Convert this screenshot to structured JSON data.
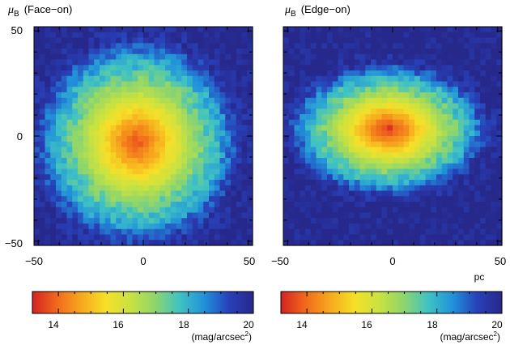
{
  "chart_data": [
    {
      "type": "heatmap",
      "title_symbol": "μ",
      "title_sub": "B",
      "title_rest": "(Face−on)",
      "view": "face-on",
      "xlim": [
        -52,
        52
      ],
      "ylim": [
        -52,
        52
      ],
      "xticks": [
        -50,
        0,
        50
      ],
      "yticks": [
        -50,
        0,
        50
      ],
      "xtick_labels": [
        "−50",
        "0",
        "50"
      ],
      "ytick_labels": [
        "−50",
        "0",
        "50"
      ],
      "xlabel": "",
      "bins": 40,
      "center": [
        -3,
        -3
      ],
      "radial_profile": {
        "r": [
          0,
          10,
          20,
          30,
          40,
          45,
          50,
          60
        ],
        "mu": [
          13.6,
          14.8,
          16.0,
          17.2,
          18.2,
          19.0,
          19.6,
          20.0
        ]
      },
      "axis_ratio": 1.0
    },
    {
      "type": "heatmap",
      "title_symbol": "μ",
      "title_sub": "B",
      "title_rest": "(Edge−on)",
      "view": "edge-on",
      "xlim": [
        -52,
        52
      ],
      "ylim": [
        -52,
        52
      ],
      "xticks": [
        -50,
        0,
        50
      ],
      "yticks": [
        -50,
        0,
        50
      ],
      "xtick_labels": [
        "−50",
        "0",
        "50"
      ],
      "ytick_labels": [
        "",
        "0",
        "50"
      ],
      "xlabel": "pc",
      "bins": 40,
      "center": [
        -2,
        3
      ],
      "radial_profile": {
        "r": [
          0,
          10,
          20,
          30,
          40,
          45,
          50,
          60
        ],
        "mu": [
          13.3,
          14.6,
          15.8,
          17.0,
          18.0,
          18.8,
          19.5,
          20.0
        ]
      },
      "axis_ratio": 0.42
    }
  ],
  "colorbar": {
    "min": 13.2,
    "max": 20,
    "ticks": [
      14,
      16,
      18,
      20
    ],
    "tick_labels": [
      "14",
      "16",
      "18",
      "20"
    ],
    "unit_prefix": "(mag/arcsec",
    "unit_sup": "2",
    "unit_suffix": ")",
    "colormap": [
      "#d42222",
      "#f06a1c",
      "#f7a81d",
      "#f6e028",
      "#c8e241",
      "#8ed56c",
      "#3fc2c4",
      "#2191da",
      "#2840b8",
      "#27288c"
    ]
  }
}
